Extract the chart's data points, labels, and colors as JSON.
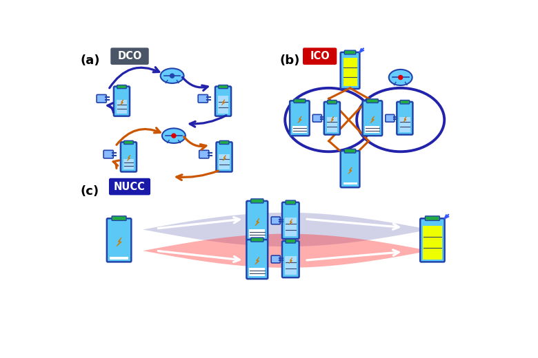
{
  "fig_width": 7.8,
  "fig_height": 5.2,
  "dpi": 100,
  "bg_color": "#ffffff",
  "panel_labels": [
    "(a)",
    "(b)",
    "(c)"
  ],
  "label_fontsize": 13,
  "dco_label": "DCO",
  "ico_label": "ICO",
  "nucc_label": "NUCC",
  "dco_bg": "#4a5568",
  "ico_bg": "#cc0000",
  "nucc_bg": "#1a1aaa",
  "label_text_color": "#ffffff",
  "bat_body": "#5bc8f5",
  "bat_border": "#2244aa",
  "bat_fill_empty": "#ffffff",
  "bat_fill_yellow": "#eeff00",
  "bat_fill_blue": "#aaddff",
  "lightning_color": "#ffaa00",
  "plug_color": "#88bbff",
  "arrow_dco_color": "#2222aa",
  "arrow_orange_color": "#cc5500",
  "ctrl_fill": "#66ccff",
  "ctrl_border": "#2244aa",
  "ctrl_red": "#dd0000",
  "green_cap": "#22aa44",
  "nucc_blue_beam": "#9999cc",
  "nucc_red_beam": "#ff3333"
}
